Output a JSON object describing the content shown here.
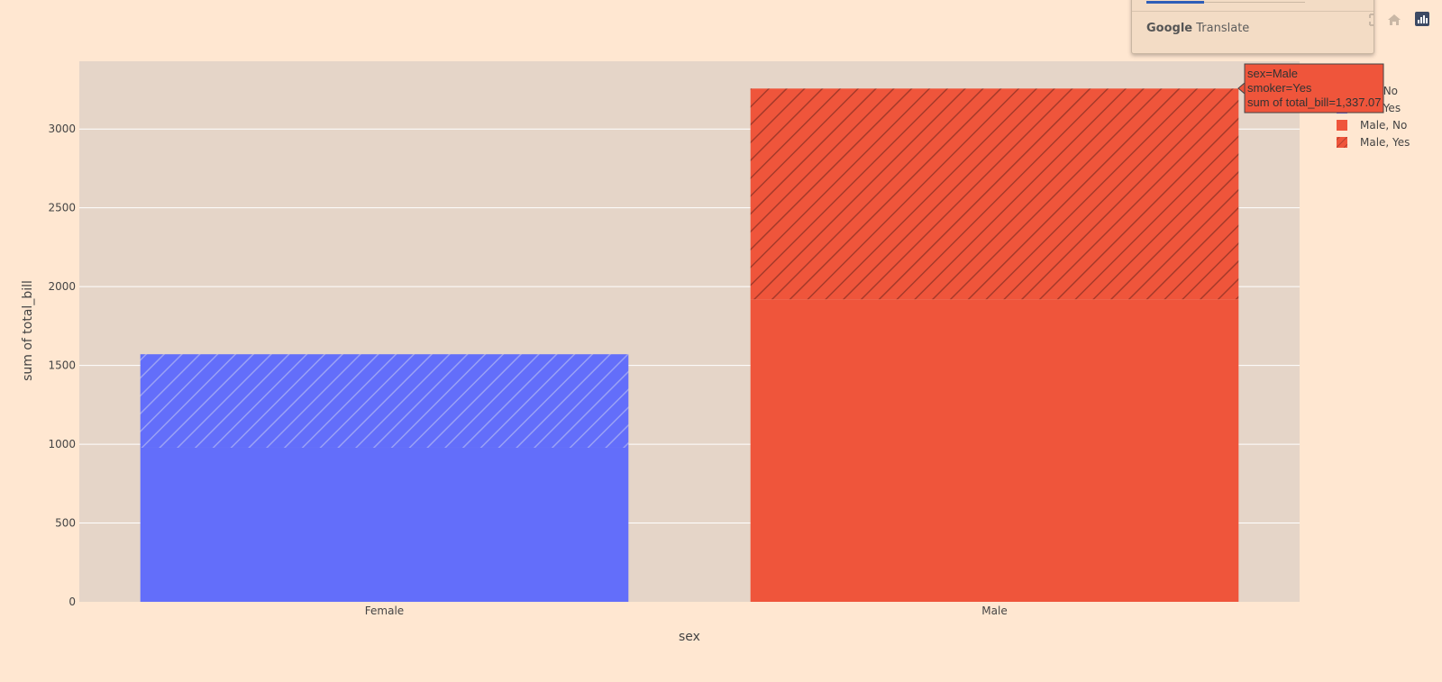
{
  "chart_data": {
    "type": "bar",
    "barmode": "stack",
    "categories": [
      "Female",
      "Male"
    ],
    "series": [
      {
        "name": "Female, No",
        "category": "Female",
        "values": [
          977.68,
          0
        ],
        "color": "#636efa",
        "pattern": "none"
      },
      {
        "name": "Female, Yes",
        "category": "Female",
        "values": [
          593.27,
          0
        ],
        "color": "#636efa",
        "pattern": "diagonal"
      },
      {
        "name": "Male, No",
        "category": "Male",
        "values": [
          0,
          1919.75
        ],
        "color": "#ef553b",
        "pattern": "none"
      },
      {
        "name": "Male, Yes",
        "category": "Male",
        "values": [
          0,
          1337.07
        ],
        "color": "#ef553b",
        "pattern": "diagonal"
      }
    ],
    "xlabel": "sex",
    "ylabel": "sum of total_bill",
    "ylim": [
      0,
      3430
    ],
    "yticks": [
      0,
      500,
      1000,
      1500,
      2000,
      2500,
      3000
    ],
    "grid": true,
    "legend": {
      "title": "er",
      "placement": "right",
      "entries": [
        "ale, No",
        "ale, Yes",
        "Male, No",
        "Male, Yes"
      ]
    },
    "hover": {
      "lines": [
        "sex=Male",
        "smoker=Yes",
        "sum of total_bill=1,337.07"
      ],
      "color": "#ef553b"
    }
  },
  "colors": {
    "page_bg": "#ffe7d1",
    "plot_bg": "#e5d5c8",
    "female": "#636efa",
    "male": "#ef553b"
  },
  "popup": {
    "brand_g": "Google",
    "brand_t": "Translate"
  },
  "modebar": {
    "icons": [
      "autoscale-icon",
      "reset-axes-icon",
      "plotly-logo-icon"
    ]
  }
}
